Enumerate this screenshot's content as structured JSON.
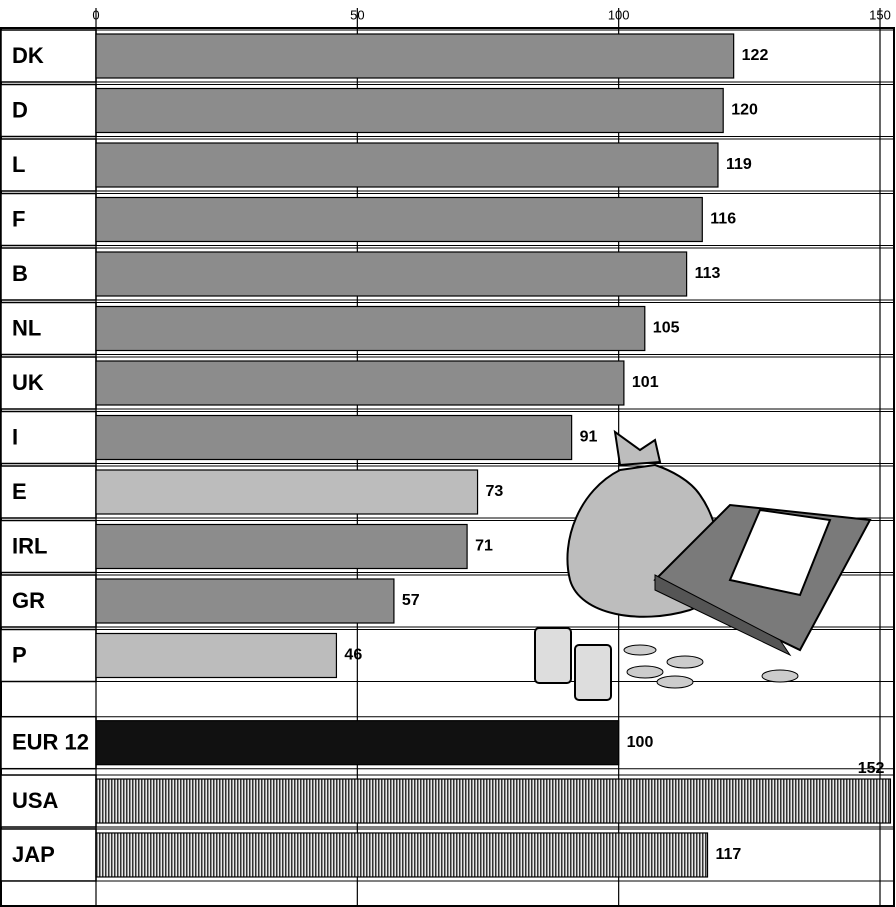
{
  "chart_data": {
    "type": "bar",
    "orientation": "horizontal",
    "categories": [
      "DK",
      "D",
      "L",
      "F",
      "B",
      "NL",
      "UK",
      "I",
      "E",
      "IRL",
      "GR",
      "P",
      "EUR 12",
      "USA",
      "JAP"
    ],
    "values": [
      122,
      120,
      119,
      116,
      113,
      105,
      101,
      91,
      73,
      71,
      57,
      46,
      100,
      152,
      117
    ],
    "colors": [
      "#8c8c8c",
      "#8c8c8c",
      "#8c8c8c",
      "#8c8c8c",
      "#8c8c8c",
      "#8c8c8c",
      "#8c8c8c",
      "#8c8c8c",
      "#bcbcbc",
      "#8c8c8c",
      "#8c8c8c",
      "#bcbcbc",
      "#111111",
      "#9a9a9a",
      "#9a9a9a"
    ],
    "hatched": [
      false,
      false,
      false,
      false,
      false,
      false,
      false,
      false,
      false,
      false,
      false,
      false,
      false,
      true,
      true
    ],
    "xlim": [
      0,
      150
    ],
    "xticks": [
      0,
      50,
      100,
      150
    ],
    "grid": true
  }
}
